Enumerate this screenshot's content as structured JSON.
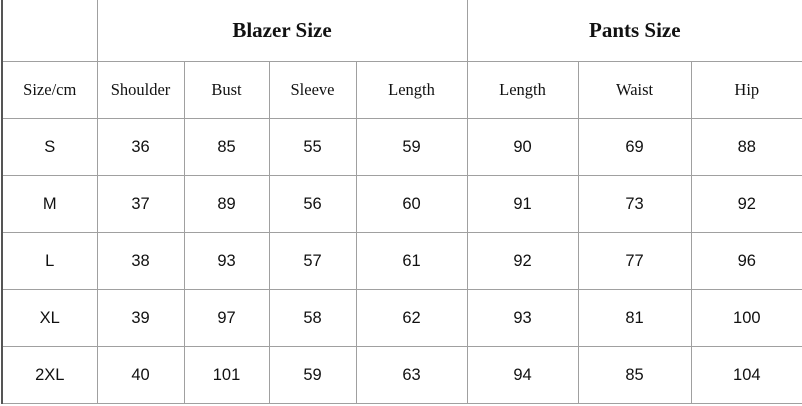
{
  "groups": {
    "blazer": "Blazer Size",
    "pants": "Pants Size"
  },
  "headers": [
    "Size/cm",
    "Shoulder",
    "Bust",
    "Sleeve",
    "Length",
    "Length",
    "Waist",
    "Hip"
  ],
  "rows": [
    [
      "S",
      "36",
      "85",
      "55",
      "59",
      "90",
      "69",
      "88"
    ],
    [
      "M",
      "37",
      "89",
      "56",
      "60",
      "91",
      "73",
      "92"
    ],
    [
      "L",
      "38",
      "93",
      "57",
      "61",
      "92",
      "77",
      "96"
    ],
    [
      "XL",
      "39",
      "97",
      "58",
      "62",
      "93",
      "81",
      "100"
    ],
    [
      "2XL",
      "40",
      "101",
      "59",
      "63",
      "94",
      "85",
      "104"
    ]
  ]
}
